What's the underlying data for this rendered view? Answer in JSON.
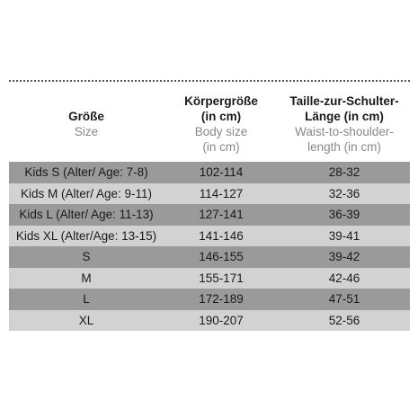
{
  "header": {
    "size_de": "Größe",
    "size_en": "Size",
    "body_de_1": "Körpergröße",
    "body_de_2": "(in cm)",
    "body_en_1": "Body size",
    "body_en_2": "(in cm)",
    "waist_de_1": "Taille-zur-Schulter-",
    "waist_de_2": "Länge (in cm)",
    "waist_en_1": "Waist-to-shoulder-",
    "waist_en_2": "length (in cm)"
  },
  "rows": [
    {
      "size": "Kids S (Alter/ Age: 7-8)",
      "body": "102-114",
      "waist": "28-32"
    },
    {
      "size": "Kids M (Alter/ Age: 9-11)",
      "body": "114-127",
      "waist": "32-36"
    },
    {
      "size": "Kids L (Alter/ Age: 11-13)",
      "body": "127-141",
      "waist": "36-39"
    },
    {
      "size": "Kids XL (Alter/Age: 13-15)",
      "body": "141-146",
      "waist": "39-41"
    },
    {
      "size": "S",
      "body": "146-155",
      "waist": "39-42"
    },
    {
      "size": "M",
      "body": "155-171",
      "waist": "42-46"
    },
    {
      "size": "L",
      "body": "172-189",
      "waist": "47-51"
    },
    {
      "size": "XL",
      "body": "190-207",
      "waist": "52-56"
    }
  ],
  "colors": {
    "dark_row": "#9a9a9a",
    "light_row": "#d2d2d2",
    "english_label": "#888888"
  }
}
